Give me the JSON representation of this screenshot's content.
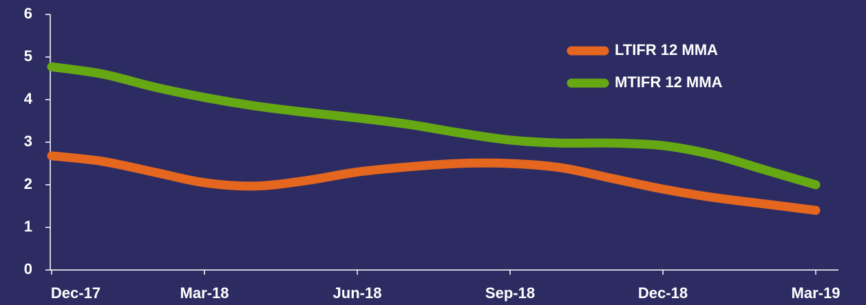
{
  "chart_data": {
    "type": "line",
    "categories": [
      "Dec-17",
      null,
      null,
      "Mar-18",
      null,
      null,
      "Jun-18",
      null,
      null,
      "Sep-18",
      null,
      null,
      "Dec-18",
      null,
      null,
      "Mar-19"
    ],
    "series": [
      {
        "name": "LTIFR 12 MMA",
        "color": "#e4661f",
        "values": [
          2.68,
          2.55,
          2.3,
          2.05,
          1.97,
          2.1,
          2.3,
          2.42,
          2.5,
          2.5,
          2.4,
          2.15,
          1.9,
          1.7,
          1.55,
          1.4
        ]
      },
      {
        "name": "MTIFR 12 MMA",
        "color": "#66a814",
        "values": [
          4.77,
          4.6,
          4.3,
          4.05,
          3.85,
          3.7,
          3.57,
          3.42,
          3.22,
          3.05,
          2.98,
          2.98,
          2.92,
          2.7,
          2.35,
          2.0
        ]
      }
    ],
    "ylim": [
      0,
      6
    ],
    "yticks": [
      0,
      1,
      2,
      3,
      4,
      5,
      6
    ],
    "legend": "upper right"
  }
}
